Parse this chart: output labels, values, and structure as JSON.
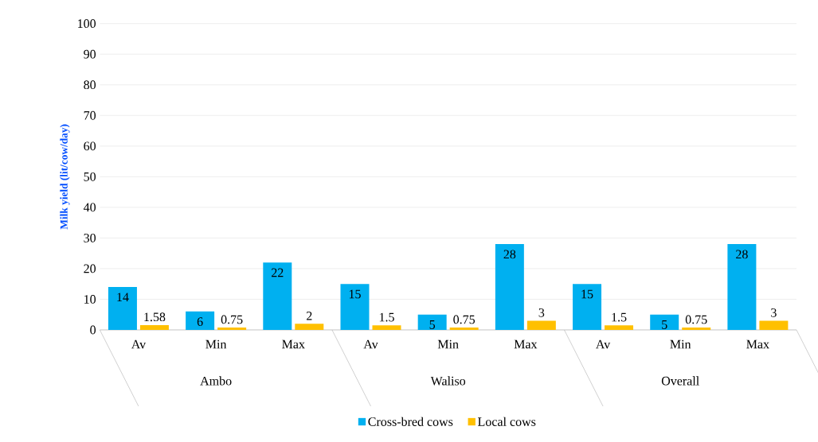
{
  "chart_data": {
    "type": "bar",
    "ylabel": "Milk yield (lit/cow/day)",
    "categories": [
      "Av",
      "Min",
      "Max",
      "Av",
      "Min",
      "Max",
      "Av",
      "Min",
      "Max"
    ],
    "annotations": [
      "Ambo",
      "Waliso",
      "Overall"
    ],
    "series": [
      {
        "name": "Cross-bred cows",
        "color": "#00b0f0",
        "values": [
          14,
          6,
          22,
          15,
          5,
          28,
          15,
          5,
          28
        ]
      },
      {
        "name": "Local cows",
        "color": "#ffc000",
        "values": [
          1.58,
          0.75,
          2,
          1.5,
          0.75,
          3,
          1.5,
          0.75,
          3
        ]
      }
    ],
    "ylim": [
      0,
      100
    ],
    "yticks": [
      0,
      10,
      20,
      30,
      40,
      50,
      60,
      70,
      80,
      90,
      100
    ],
    "grid": "y",
    "legend": "bottom",
    "data_labels": true
  }
}
